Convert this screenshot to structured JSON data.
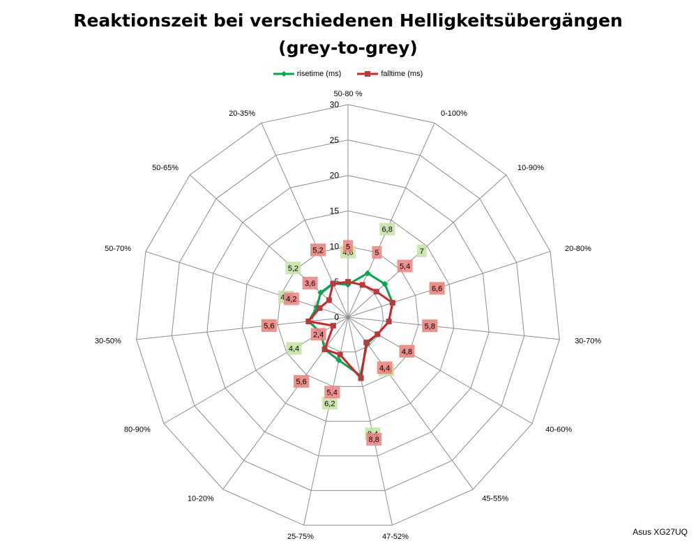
{
  "chart_data": {
    "type": "radar",
    "title": "Reaktionszeit bei verschiedenen Helligkeitsübergängen",
    "subtitle": "(grey-to-grey)",
    "categories": [
      "50-80 %",
      "0-100%",
      "10-90%",
      "20-80%",
      "30-70%",
      "40-60%",
      "45-55%",
      "47-52%",
      "25-75%",
      "10-20%",
      "80-90%",
      "30-50%",
      "50-70%",
      "50-65%",
      "20-35%"
    ],
    "axis_labels": [
      "50-80 %",
      "0-100%",
      "10-90%",
      "20-80%",
      "30-70%",
      "40-60%",
      "45-55%",
      "47-52%",
      "25-75%",
      "10-20%",
      "80-90%",
      "30-50%",
      "50-70%",
      "50-65%",
      "20-35%"
    ],
    "series": [
      {
        "name": "risetime (ms)",
        "color": "#00a550",
        "label_bg": "#c4e3a5",
        "values": [
          4.6,
          6.8,
          7,
          6.6,
          5.8,
          4.8,
          4.6,
          8.4,
          6.2,
          5.6,
          4.4,
          5.6,
          4.6,
          5.2,
          5.2
        ]
      },
      {
        "name": "falltime (ms)",
        "color": "#d42027",
        "label_bg": "#f08080",
        "values": [
          5,
          5,
          5.4,
          6.6,
          5.8,
          4.8,
          4.4,
          8.8,
          5.4,
          5.6,
          2.4,
          5.6,
          4.2,
          3.6,
          5.2
        ]
      }
    ],
    "risetime_labels": [
      "4,6",
      "6,8",
      "7",
      "6,6",
      "5,8",
      "4,8",
      "4,6",
      "8,4",
      "6,2",
      "5,6",
      "4,4",
      "5,6",
      "4,6",
      "5,2",
      "5,2"
    ],
    "falltime_labels": [
      "5",
      "5",
      "5,4",
      "6,6",
      "5,8",
      "4,8",
      "4,4",
      "8,8",
      "5,4",
      "5,6",
      "2,4",
      "5,6",
      "4,2",
      "3,6",
      "5,2"
    ],
    "rmin": 0,
    "rmax": 30,
    "ticks": [
      0,
      5,
      10,
      15,
      20,
      25,
      30
    ],
    "grid": true,
    "legend_position": "top"
  },
  "watermark": "Asus XG27UQ"
}
